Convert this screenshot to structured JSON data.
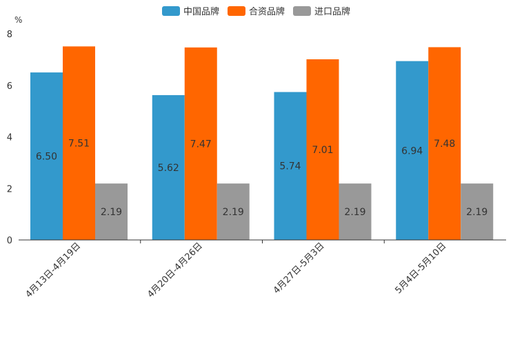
{
  "chart_data": {
    "type": "bar",
    "title": "",
    "unit_label": "%",
    "xlabel": "",
    "ylabel": "",
    "ylim": [
      0,
      8
    ],
    "yticks": [
      "0",
      "2",
      "4",
      "6",
      "8"
    ],
    "categories": [
      "4月13日-4月19日",
      "4月20日-4月26日",
      "4月27日-5月3日",
      "5月4日-5月10日"
    ],
    "series": [
      {
        "name": "中国品牌",
        "color": "#3399cc",
        "values": [
          6.5,
          5.62,
          5.74,
          6.94
        ],
        "labels": [
          "6.50",
          "5.62",
          "5.74",
          "6.94"
        ]
      },
      {
        "name": "合资品牌",
        "color": "#ff6600",
        "values": [
          7.51,
          7.47,
          7.01,
          7.48
        ],
        "labels": [
          "7.51",
          "7.47",
          "7.01",
          "7.48"
        ]
      },
      {
        "name": "进口品牌",
        "color": "#999999",
        "values": [
          2.19,
          2.19,
          2.19,
          2.19
        ],
        "labels": [
          "2.19",
          "2.19",
          "2.19",
          "2.19"
        ]
      }
    ],
    "legend_position": "top-center",
    "grid": false
  }
}
